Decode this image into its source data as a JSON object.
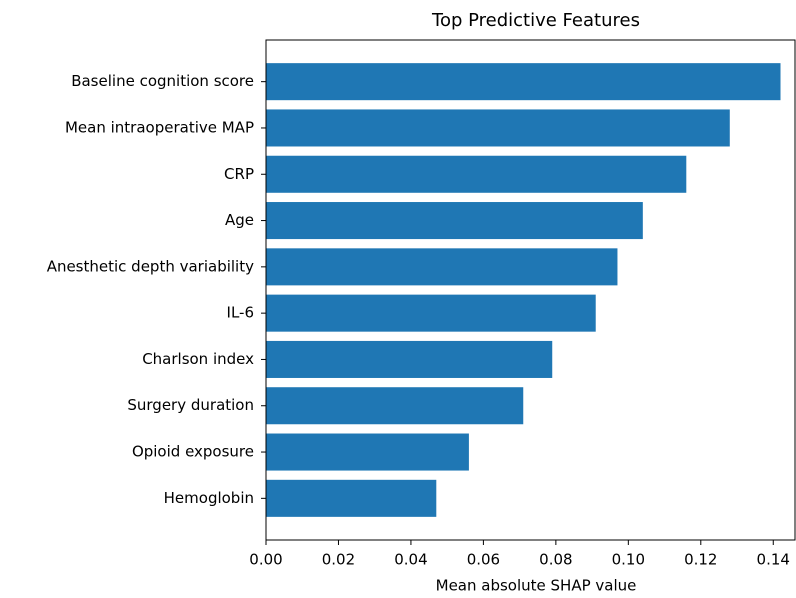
{
  "chart_data": {
    "type": "barh",
    "title": "Top Predictive Features",
    "xlabel": "Mean absolute SHAP value",
    "categories": [
      "Baseline cognition score",
      "Mean intraoperative MAP",
      "CRP",
      "Age",
      "Anesthetic depth variability",
      "IL-6",
      "Charlson index",
      "Surgery duration",
      "Opioid exposure",
      "Hemoglobin"
    ],
    "values": [
      0.142,
      0.128,
      0.116,
      0.104,
      0.097,
      0.091,
      0.079,
      0.071,
      0.056,
      0.047
    ],
    "color": "#1f77b4",
    "xlim": [
      0,
      0.146
    ],
    "xticks": [
      {
        "value": 0,
        "label": "0.00"
      },
      {
        "value": 0.02,
        "label": "0.02"
      },
      {
        "value": 0.04,
        "label": "0.04"
      },
      {
        "value": 0.06,
        "label": "0.06"
      },
      {
        "value": 0.08,
        "label": "0.08"
      },
      {
        "value": 0.1,
        "label": "0.10"
      },
      {
        "value": 0.12,
        "label": "0.12"
      },
      {
        "value": 0.14,
        "label": "0.14"
      }
    ],
    "grid": false
  }
}
